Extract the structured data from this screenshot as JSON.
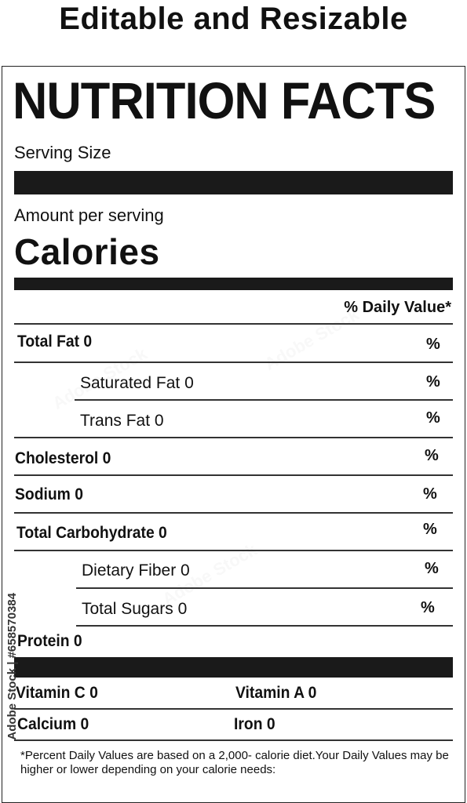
{
  "header": {
    "title": "Editable and Resizable"
  },
  "label": {
    "title": "NUTRITION FACTS",
    "serving_size": "Serving Size",
    "amount_per_serving": "Amount per serving",
    "calories": "Calories",
    "daily_value_header": "% Daily Value*",
    "rows": [
      {
        "label": "Total Fat 0",
        "percent": "%"
      },
      {
        "label": "Saturated Fat 0",
        "percent": "%"
      },
      {
        "label": "Trans Fat 0",
        "percent": "%"
      },
      {
        "label": "Cholesterol 0",
        "percent": "%"
      },
      {
        "label": "Sodium 0",
        "percent": "%"
      },
      {
        "label": "Total Carbohydrate 0",
        "percent": "%"
      },
      {
        "label": "Dietary Fiber 0",
        "percent": "%"
      },
      {
        "label": "Total Sugars 0",
        "percent": "%"
      }
    ],
    "protein": "Protein 0",
    "vitamins": {
      "vitamin_c": "Vitamin C 0",
      "vitamin_a": "Vitamin A 0",
      "calcium": "Calcium 0",
      "iron": "Iron 0"
    },
    "footnote": "*Percent Daily Values are  based on a 2,000- calorie diet.Your Daily Values may be higher or lower depending on your calorie needs:"
  },
  "stock_id": "Adobe Stock | #658570384",
  "watermark": "Adobe Stock"
}
